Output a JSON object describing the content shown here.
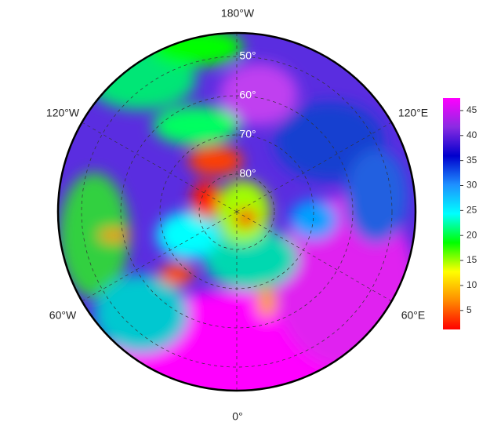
{
  "map": {
    "lon_labels": [
      "180°W",
      "120°W",
      "120°E",
      "60°W",
      "60°E",
      "0°"
    ],
    "lat_labels": [
      "50°",
      "60°",
      "70°",
      "80°"
    ]
  },
  "colorbar": {
    "lim": [
      1.2,
      47.5
    ],
    "ticks": [
      5,
      10,
      15,
      20,
      25,
      30,
      35,
      40,
      45
    ],
    "colors": [
      "#ff0000",
      "#ff8c00",
      "#ffff00",
      "#00ff00",
      "#00ffff",
      "#1e90ff",
      "#0000cd",
      "#8a2be2",
      "#ff00ff"
    ]
  }
}
